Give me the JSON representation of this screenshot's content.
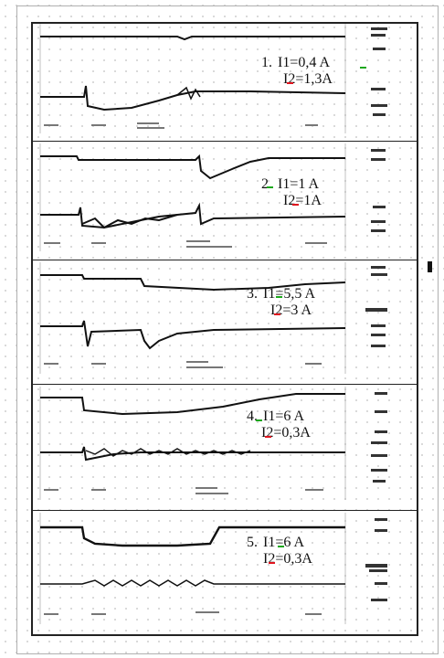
{
  "panels": [
    {
      "number": "1.",
      "line1": "I1=0,4 A",
      "line2": "I2=1,3A"
    },
    {
      "number": "2.",
      "line1": "I1=1 A",
      "line2": "I2=1A"
    },
    {
      "number": "3.",
      "line1": "I1=5,5 A",
      "line2": "I2=3 A"
    },
    {
      "number": "4.",
      "line1": "I1=6 A",
      "line2": "I2=0,3A"
    },
    {
      "number": "5.",
      "line1": "I1=6 A",
      "line2": "I2=0,3A"
    }
  ],
  "colors": {
    "trace": "#111111",
    "red_mark": "#e0141e",
    "green_mark": "#1ca81c"
  }
}
